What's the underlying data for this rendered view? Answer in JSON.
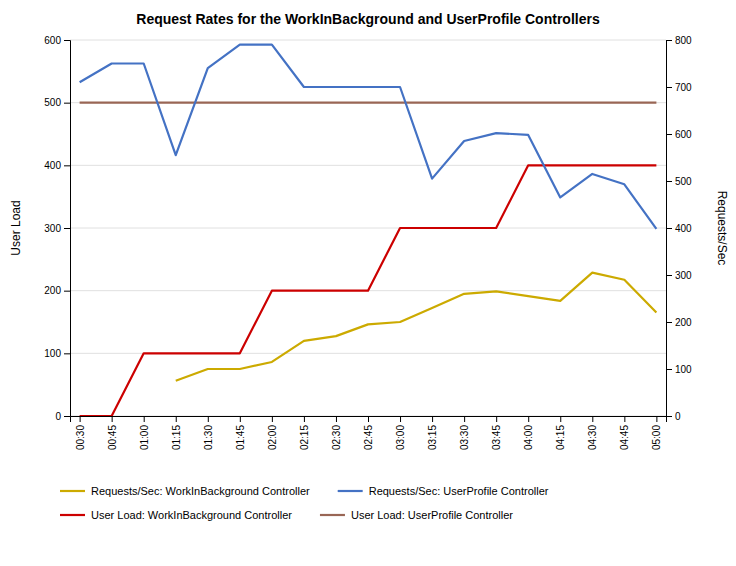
{
  "chart_data": {
    "type": "line",
    "title": "Request Rates for the WorkInBackground and UserProfile Controllers",
    "ylabel": "User Load",
    "y2label": "Requests/Sec",
    "categories": [
      "00:30",
      "00:45",
      "01:00",
      "01:15",
      "01:30",
      "01:45",
      "02:00",
      "02:15",
      "02:30",
      "02:45",
      "03:00",
      "03:15",
      "03:30",
      "03:45",
      "04:00",
      "04:15",
      "04:30",
      "04:45",
      "05:00"
    ],
    "series": [
      {
        "name": "User Load: WorkInBackground Controller",
        "color": "#cc0000",
        "values": [
          0,
          0,
          100,
          100,
          100,
          100,
          200,
          200,
          200,
          200,
          300,
          300,
          300,
          300,
          400,
          400,
          400,
          400,
          400
        ]
      },
      {
        "name": "User Load: UserProfile Controller",
        "color": "#996655",
        "values": [
          500,
          500,
          500,
          500,
          500,
          500,
          500,
          500,
          500,
          500,
          500,
          500,
          500,
          500,
          500,
          500,
          500,
          500,
          500
        ]
      },
      {
        "name": "Requests/Sec: WorkInBackground Controller",
        "color": "#ccaa00",
        "axis": "y2",
        "values": [
          null,
          null,
          null,
          75,
          100,
          100,
          115,
          160,
          170,
          195,
          200,
          230,
          260,
          265,
          255,
          245,
          305,
          290,
          220
        ]
      },
      {
        "name": "Requests/Sec: UserProfile Controller",
        "color": "#4472c4",
        "axis": "y2",
        "values": [
          710,
          750,
          750,
          555,
          740,
          790,
          790,
          700,
          700,
          700,
          700,
          505,
          585,
          602,
          598,
          465,
          515,
          493,
          398
        ]
      }
    ],
    "ylim": [
      0,
      600
    ],
    "yticks": [
      0,
      100,
      200,
      300,
      400,
      500,
      600
    ],
    "y2lim": [
      0,
      800
    ],
    "y2ticks": [
      0,
      100,
      200,
      300,
      400,
      500,
      600,
      700,
      800
    ],
    "grid": true,
    "legend": "bottom"
  }
}
